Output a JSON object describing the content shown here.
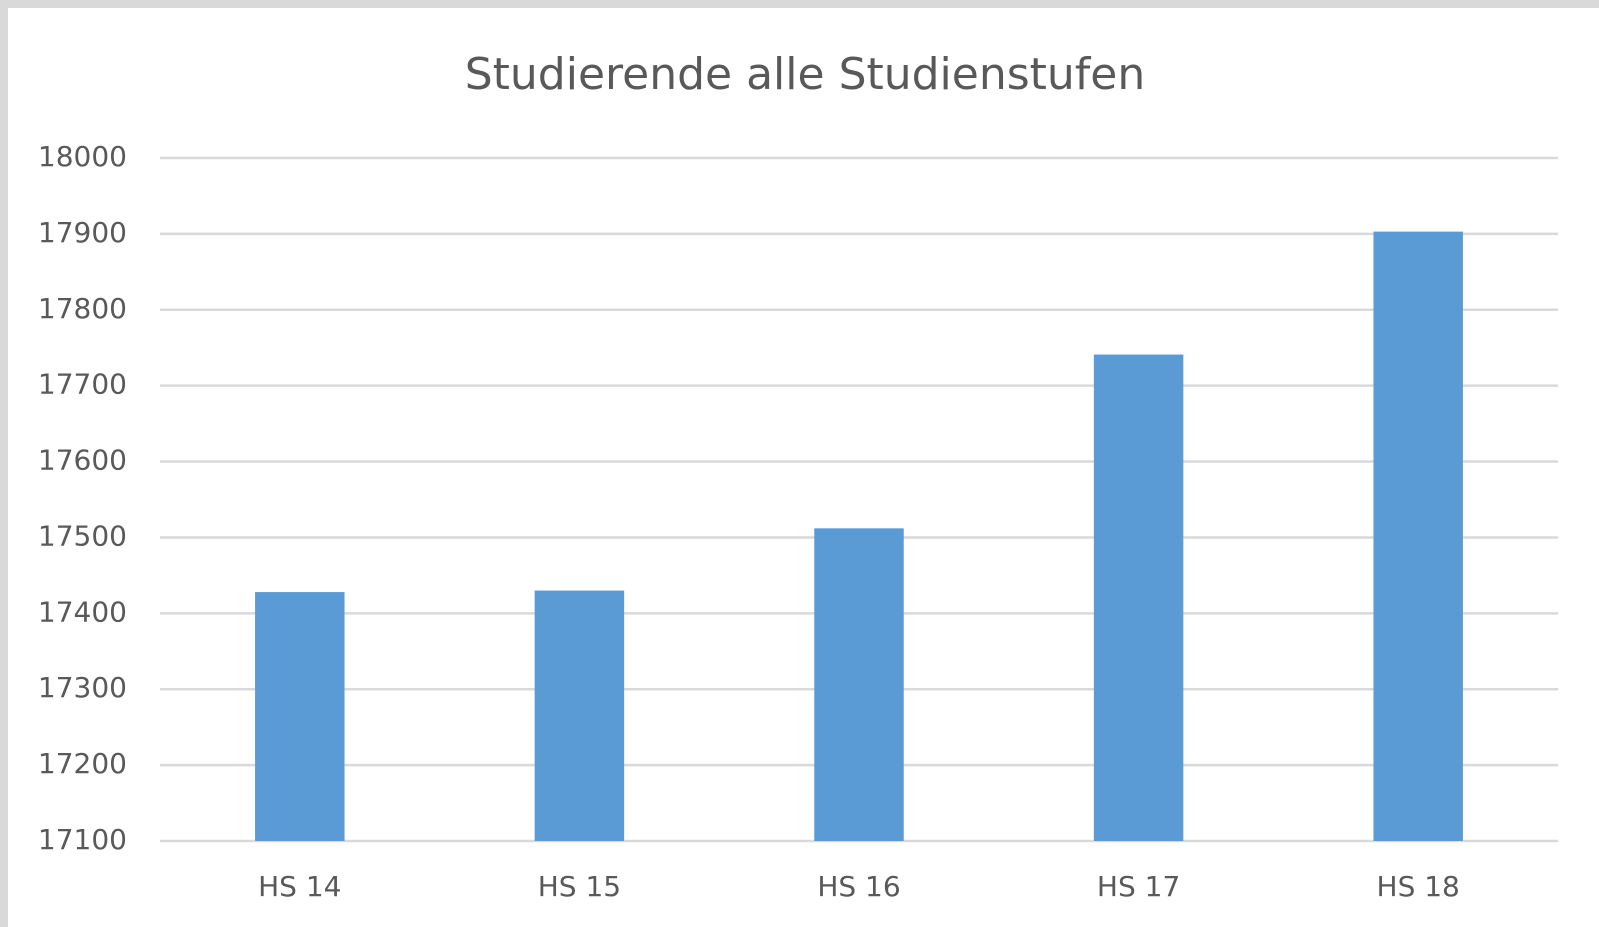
{
  "chart_data": {
    "type": "bar",
    "title": "Studierende alle Studienstufen",
    "categories": [
      "HS 14",
      "HS 15",
      "HS 16",
      "HS 17",
      "HS 18"
    ],
    "values": [
      17428,
      17430,
      17512,
      17741,
      17903
    ],
    "color": "#5b9bd5",
    "ylim": [
      17100,
      18000
    ],
    "yticks": [
      17100,
      17200,
      17300,
      17400,
      17500,
      17600,
      17700,
      17800,
      17900,
      18000
    ],
    "grid": true
  }
}
